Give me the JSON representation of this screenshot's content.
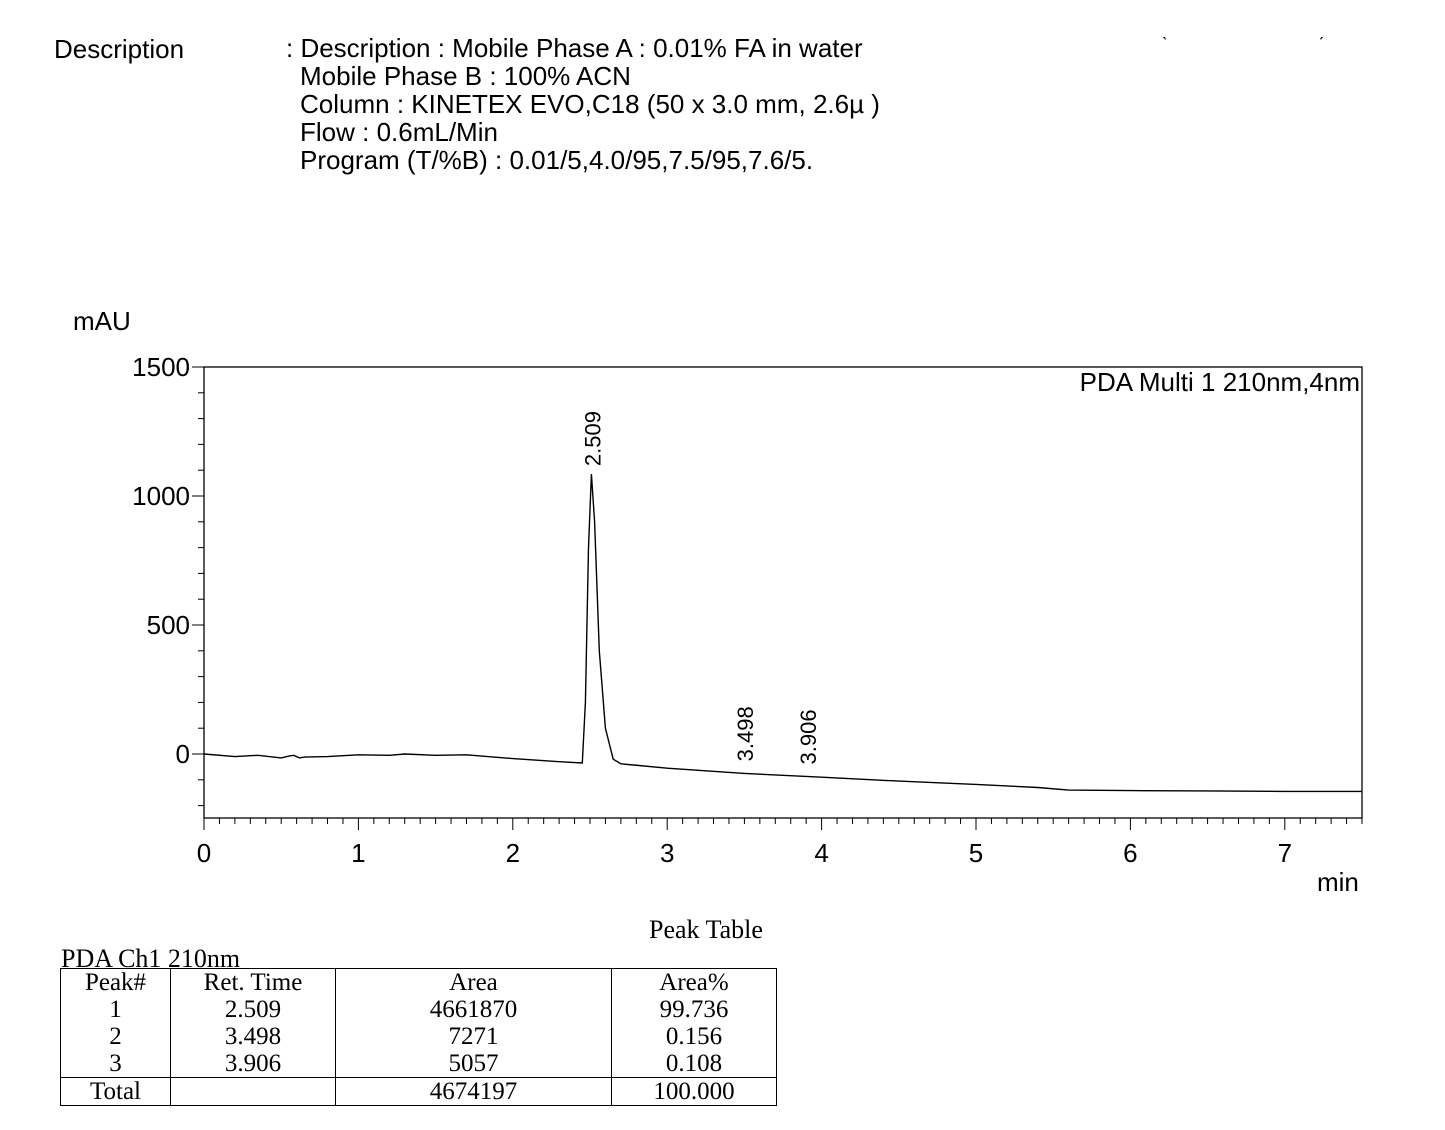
{
  "description": {
    "label": "Description",
    "lines": [
      ": Description : Mobile Phase A : 0.01% FA in water",
      "Mobile Phase B : 100% ACN",
      "Column : KINETEX EVO,C18 (50 x 3.0 mm, 2.6µ )",
      "Flow : 0.6mL/Min",
      "Program (T/%B) : 0.01/5,4.0/95,7.5/95,7.6/5."
    ]
  },
  "corner_marks": [
    "ˎ",
    "ˏ"
  ],
  "chart_data": {
    "type": "line",
    "ylabel": "mAU",
    "xlabel": "min",
    "legend": "PDA Multi 1 210nm,4nm",
    "xlim": [
      0,
      7.5
    ],
    "ylim": [
      -250,
      1500
    ],
    "x_ticks": [
      0,
      1,
      2,
      3,
      4,
      5,
      6,
      7
    ],
    "y_ticks": [
      1500,
      1000,
      500,
      0
    ],
    "grid": false,
    "series": [
      {
        "x": [
          0,
          0.2,
          0.35,
          0.5,
          0.55,
          0.58,
          0.62,
          0.65,
          0.8,
          1.0,
          1.2,
          1.3,
          1.5,
          1.7,
          2.0,
          2.3,
          2.45,
          2.47,
          2.49,
          2.509,
          2.53,
          2.56,
          2.6,
          2.65,
          2.7,
          3.0,
          3.5,
          4.0,
          4.5,
          5.0,
          5.4,
          5.6,
          6.0,
          6.5,
          7.0,
          7.5
        ],
        "y": [
          0,
          -10,
          -5,
          -15,
          -8,
          -5,
          -15,
          -12,
          -10,
          -3,
          -5,
          0,
          -5,
          -3,
          -18,
          -30,
          -35,
          200,
          800,
          1085,
          900,
          400,
          100,
          -20,
          -38,
          -55,
          -75,
          -90,
          -105,
          -118,
          -130,
          -140,
          -142,
          -143,
          -145,
          -145
        ]
      }
    ],
    "peak_labels": [
      {
        "x": 2.509,
        "label": "2.509"
      },
      {
        "x": 3.498,
        "label": "3.498"
      },
      {
        "x": 3.906,
        "label": "3.906"
      }
    ]
  },
  "peak_table": {
    "title": "Peak Table",
    "channel": "PDA Ch1 210nm",
    "columns": [
      "Peak#",
      "Ret. Time",
      "Area",
      "Area%"
    ],
    "rows": [
      [
        "1",
        "2.509",
        "4661870",
        "99.736"
      ],
      [
        "2",
        "3.498",
        "7271",
        "0.156"
      ],
      [
        "3",
        "3.906",
        "5057",
        "0.108"
      ]
    ],
    "total": [
      "Total",
      "",
      "4674197",
      "100.000"
    ]
  }
}
